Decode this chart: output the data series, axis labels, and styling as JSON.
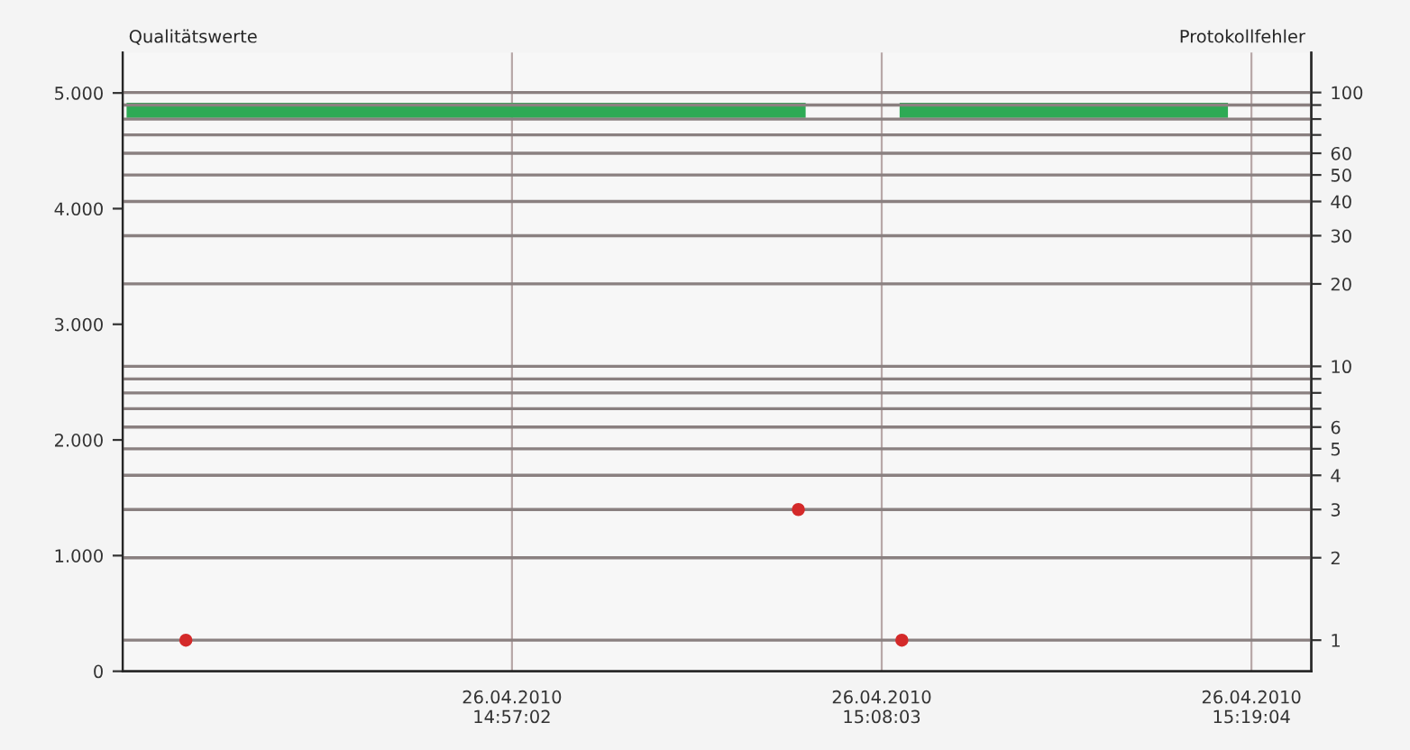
{
  "chart_data": {
    "type": "line",
    "ylabel": "Qualitätswerte",
    "y2label": "Protokollfehler",
    "xlim": [
      "2010-04-26T14:45:26",
      "2010-04-26T15:20:51"
    ],
    "xticks": [
      {
        "value": "2010-04-26T14:57:02",
        "label": "26.04.2010\n14:57:02"
      },
      {
        "value": "2010-04-26T15:08:03",
        "label": "26.04.2010\n15:08:03"
      },
      {
        "value": "2010-04-26T15:19:04",
        "label": "26.04.2010\n15:19:04"
      }
    ],
    "ylim": [
      0,
      5350
    ],
    "yticks": [
      {
        "value": 0,
        "label": "0"
      },
      {
        "value": 1000,
        "label": "1.000"
      },
      {
        "value": 2000,
        "label": "2.000"
      },
      {
        "value": 3000,
        "label": "3.000"
      },
      {
        "value": 4000,
        "label": "4.000"
      },
      {
        "value": 5000,
        "label": "5.000"
      }
    ],
    "log": "y2",
    "y2lim": [
      0.77,
      140
    ],
    "y2ticks": [
      1,
      2,
      3,
      4,
      5,
      6,
      {
        "value": 7,
        "label": null
      },
      {
        "value": 8,
        "label": null
      },
      {
        "value": 9,
        "label": null
      },
      10,
      20,
      30,
      40,
      50,
      60,
      {
        "value": 70,
        "label": null
      },
      {
        "value": 80,
        "label": null
      },
      {
        "value": 90,
        "label": null
      },
      100
    ],
    "grid": true,
    "legend": false,
    "series": [
      {
        "color": "#2eaa55",
        "x": [
          "2010-04-26T14:45:33",
          "2010-04-26T15:05:47",
          "2010-04-26T15:07:00",
          "2010-04-26T15:08:35",
          "2010-04-26T15:18:22"
        ],
        "values": [
          4850,
          4850,
          null,
          4850,
          4850
        ]
      },
      {
        "type": "scatter",
        "axis": "y2",
        "color": "#d42a2a",
        "marker": "circle",
        "x": [
          "2010-04-26T14:47:19",
          "2010-04-26T15:05:34",
          "2010-04-26T15:08:39"
        ],
        "values": [
          1,
          3,
          1
        ]
      }
    ]
  }
}
